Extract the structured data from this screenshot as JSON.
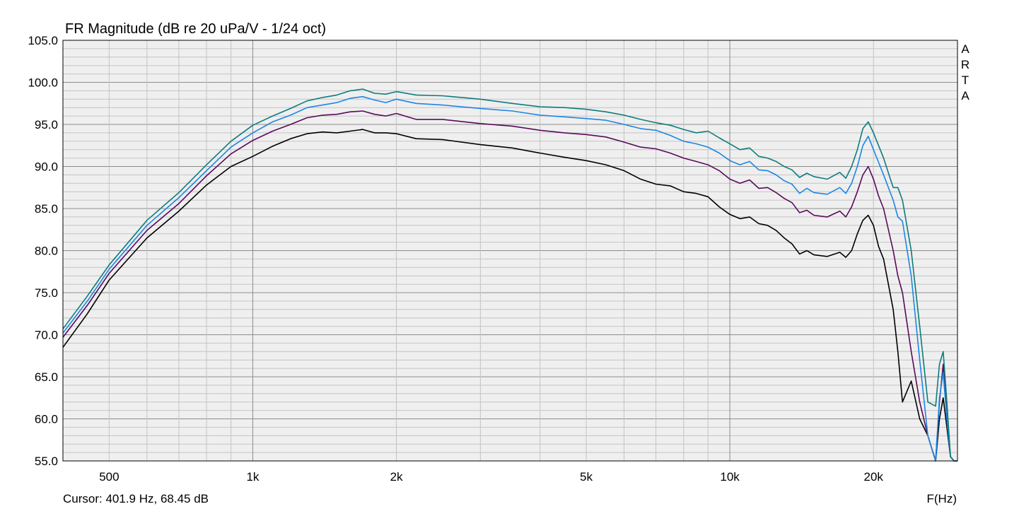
{
  "chart_data": {
    "type": "line",
    "title": "FR Magnitude (dB re 20 uPa/V - 1/24 oct)",
    "xlabel": "F(Hz)",
    "ylabel": "",
    "x_scale": "log",
    "xlim": [
      400,
      30000
    ],
    "ylim": [
      55,
      105
    ],
    "grid": true,
    "y_ticks": [
      "105.0",
      "100.0",
      "95.0",
      "90.0",
      "85.0",
      "80.0",
      "75.0",
      "70.0",
      "65.0",
      "60.0",
      "55.0"
    ],
    "x_ticks": [
      {
        "value": 500,
        "label": "500"
      },
      {
        "value": 1000,
        "label": "1k"
      },
      {
        "value": 2000,
        "label": "2k"
      },
      {
        "value": 5000,
        "label": "5k"
      },
      {
        "value": 10000,
        "label": "10k"
      },
      {
        "value": 20000,
        "label": "20k"
      }
    ],
    "cursor_text": "Cursor: 401.9 Hz, 68.45 dB",
    "watermark": [
      "A",
      "R",
      "T",
      "A"
    ],
    "series": [
      {
        "name": "black",
        "color": "#000000",
        "x": [
          400,
          450,
          500,
          600,
          700,
          800,
          900,
          1000,
          1100,
          1200,
          1300,
          1400,
          1500,
          1600,
          1700,
          1800,
          1900,
          2000,
          2200,
          2500,
          3000,
          3500,
          4000,
          4500,
          5000,
          5500,
          6000,
          6500,
          7000,
          7500,
          8000,
          8500,
          9000,
          9500,
          10000,
          10500,
          11000,
          11500,
          12000,
          12500,
          13000,
          13500,
          14000,
          14500,
          15000,
          16000,
          17000,
          17500,
          18000,
          18500,
          19000,
          19500,
          20000,
          20500,
          21000,
          22000,
          22500,
          23000,
          24000,
          25000,
          26000,
          27000,
          27500,
          28000,
          28500,
          29000,
          29500,
          30000
        ],
        "values": [
          68.5,
          72.5,
          76.5,
          81.5,
          84.7,
          87.8,
          90.0,
          91.2,
          92.4,
          93.3,
          93.9,
          94.1,
          94.0,
          94.2,
          94.4,
          94.0,
          94.0,
          93.9,
          93.3,
          93.2,
          92.6,
          92.2,
          91.6,
          91.1,
          90.7,
          90.2,
          89.5,
          88.5,
          87.9,
          87.7,
          87.0,
          86.8,
          86.4,
          85.2,
          84.3,
          83.8,
          84.0,
          83.2,
          83.0,
          82.4,
          81.5,
          80.8,
          79.6,
          80.0,
          79.5,
          79.3,
          79.8,
          79.2,
          80.0,
          82.0,
          83.6,
          84.2,
          83.0,
          80.5,
          79.0,
          73.0,
          68.0,
          62.0,
          64.5,
          60.0,
          58.0,
          55.0,
          60.0,
          62.5,
          59.0,
          55.5,
          55.0,
          55.0
        ]
      },
      {
        "name": "purple",
        "color": "#5a0a5a",
        "x": [
          400,
          450,
          500,
          600,
          700,
          800,
          900,
          1000,
          1100,
          1200,
          1300,
          1400,
          1500,
          1600,
          1700,
          1800,
          1900,
          2000,
          2200,
          2500,
          3000,
          3500,
          4000,
          4500,
          5000,
          5500,
          6000,
          6500,
          7000,
          7500,
          8000,
          8500,
          9000,
          9500,
          10000,
          10500,
          11000,
          11500,
          12000,
          12500,
          13000,
          13500,
          14000,
          14500,
          15000,
          16000,
          17000,
          17500,
          18000,
          18500,
          19000,
          19500,
          20000,
          20500,
          21000,
          22000,
          22500,
          23000,
          24000,
          25000,
          26000,
          27000,
          27500,
          28000,
          28500,
          29000,
          29500,
          30000
        ],
        "values": [
          69.7,
          73.5,
          77.3,
          82.4,
          85.6,
          88.9,
          91.5,
          93.1,
          94.2,
          95.0,
          95.8,
          96.1,
          96.2,
          96.5,
          96.6,
          96.2,
          96.0,
          96.3,
          95.6,
          95.6,
          95.1,
          94.8,
          94.3,
          94.0,
          93.8,
          93.5,
          92.9,
          92.3,
          92.1,
          91.6,
          91.0,
          90.6,
          90.2,
          89.5,
          88.5,
          88.0,
          88.4,
          87.4,
          87.5,
          86.9,
          86.2,
          85.7,
          84.5,
          84.8,
          84.2,
          84.0,
          84.7,
          84.0,
          85.2,
          87.0,
          89.0,
          90.0,
          88.5,
          86.5,
          85.0,
          80.0,
          77.0,
          75.0,
          68.0,
          62.0,
          58.0,
          55.0,
          62.0,
          66.5,
          61.0,
          55.5,
          55.0,
          55.0
        ]
      },
      {
        "name": "blue",
        "color": "#1c86e6",
        "x": [
          400,
          450,
          500,
          600,
          700,
          800,
          900,
          1000,
          1100,
          1200,
          1300,
          1400,
          1500,
          1600,
          1700,
          1800,
          1900,
          2000,
          2200,
          2500,
          3000,
          3500,
          4000,
          4500,
          5000,
          5500,
          6000,
          6500,
          7000,
          7500,
          8000,
          8500,
          9000,
          9500,
          10000,
          10500,
          11000,
          11500,
          12000,
          12500,
          13000,
          13500,
          14000,
          14500,
          15000,
          16000,
          17000,
          17500,
          18000,
          18500,
          19000,
          19500,
          20000,
          20500,
          21000,
          22000,
          22500,
          23000,
          24000,
          25000,
          26000,
          27000,
          27500,
          28000,
          28500,
          29000,
          29500,
          30000
        ],
        "values": [
          70.2,
          74.0,
          77.8,
          83.0,
          86.3,
          89.5,
          92.3,
          94.0,
          95.3,
          96.1,
          97.0,
          97.3,
          97.6,
          98.1,
          98.3,
          97.9,
          97.6,
          98.0,
          97.5,
          97.3,
          96.9,
          96.6,
          96.1,
          95.9,
          95.7,
          95.5,
          95.0,
          94.5,
          94.3,
          93.7,
          93.0,
          92.7,
          92.3,
          91.6,
          90.7,
          90.2,
          90.6,
          89.6,
          89.5,
          89.0,
          88.3,
          87.9,
          86.8,
          87.4,
          86.9,
          86.7,
          87.5,
          86.8,
          88.0,
          90.0,
          92.5,
          93.6,
          92.0,
          90.5,
          89.0,
          86.0,
          84.0,
          83.5,
          77.0,
          67.0,
          58.0,
          55.0,
          62.5,
          65.5,
          60.0,
          55.5,
          55.0,
          55.0
        ]
      },
      {
        "name": "teal",
        "color": "#0e7c7b",
        "x": [
          400,
          450,
          500,
          600,
          700,
          800,
          900,
          1000,
          1100,
          1200,
          1300,
          1400,
          1500,
          1600,
          1700,
          1800,
          1900,
          2000,
          2200,
          2500,
          3000,
          3500,
          4000,
          4500,
          5000,
          5500,
          6000,
          6500,
          7000,
          7500,
          8000,
          8500,
          9000,
          9500,
          10000,
          10500,
          11000,
          11500,
          12000,
          12500,
          13000,
          13500,
          14000,
          14500,
          15000,
          16000,
          17000,
          17500,
          18000,
          18500,
          19000,
          19500,
          20000,
          20500,
          21000,
          22000,
          22500,
          23000,
          24000,
          25000,
          26000,
          27000,
          27500,
          28000,
          28500,
          29000,
          29500,
          30000
        ],
        "values": [
          70.7,
          74.6,
          78.3,
          83.6,
          86.9,
          90.2,
          93.0,
          94.9,
          96.0,
          96.9,
          97.8,
          98.2,
          98.5,
          99.0,
          99.2,
          98.7,
          98.6,
          98.9,
          98.5,
          98.4,
          98.0,
          97.5,
          97.1,
          97.0,
          96.8,
          96.5,
          96.1,
          95.6,
          95.2,
          94.9,
          94.4,
          94.0,
          94.2,
          93.4,
          92.7,
          92.0,
          92.2,
          91.2,
          91.0,
          90.6,
          90.0,
          89.6,
          88.7,
          89.2,
          88.8,
          88.5,
          89.3,
          88.6,
          90.0,
          92.0,
          94.5,
          95.3,
          94.0,
          92.5,
          91.0,
          87.5,
          87.5,
          86.0,
          80.0,
          71.0,
          62.0,
          61.5,
          66.5,
          68.0,
          62.0,
          55.5,
          55.0,
          55.0
        ]
      }
    ]
  }
}
